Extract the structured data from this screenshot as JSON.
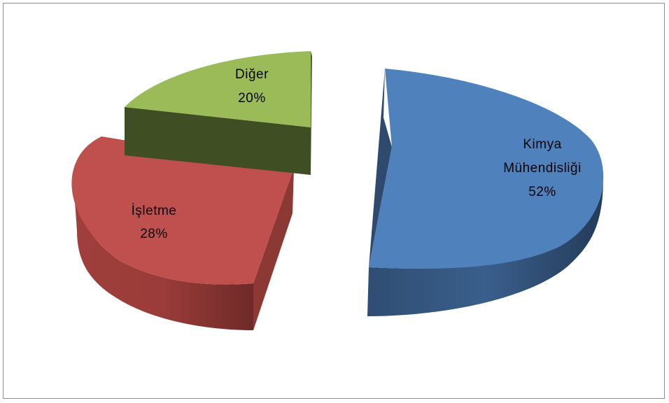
{
  "chart_data": {
    "type": "pie",
    "title": "",
    "exploded": true,
    "three_d": true,
    "legend": "none",
    "slices": [
      {
        "name": "Kimya Mühendisliği",
        "label_lines": [
          "Kimya",
          "Mühendisliği"
        ],
        "value": 52,
        "label": "52%",
        "color": "#4F81BD"
      },
      {
        "name": "İşletme",
        "label_lines": [
          "İşletme"
        ],
        "value": 28,
        "label": "28%",
        "color": "#C0504D"
      },
      {
        "name": "Diğer",
        "label_lines": [
          "Diğer"
        ],
        "value": 20,
        "label": "20%",
        "color": "#9BBB59"
      }
    ]
  }
}
